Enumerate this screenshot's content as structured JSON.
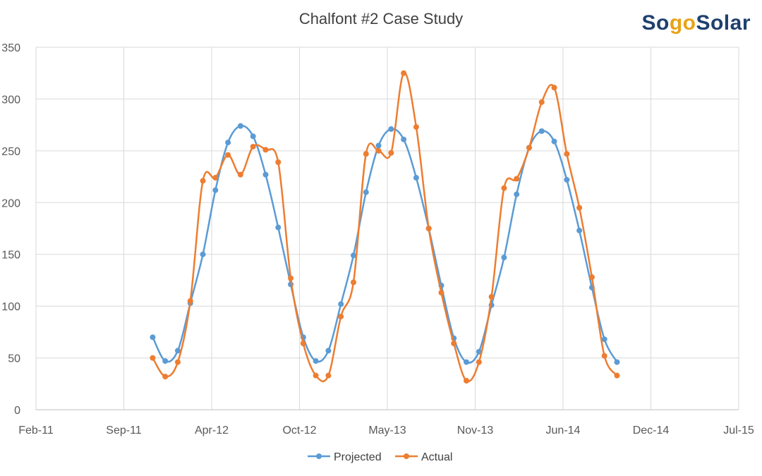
{
  "brand": {
    "logo_part1": "So",
    "logo_part2": "go",
    "logo_part3": "Solar",
    "primary_color": "#1f3f6e",
    "accent_color": "#e8a317"
  },
  "chart_data": {
    "type": "line",
    "title": "Chalfont #2 Case Study",
    "xlabel": "",
    "ylabel": "",
    "ylim": [
      0,
      350
    ],
    "yticks": [
      0,
      50,
      100,
      150,
      200,
      250,
      300,
      350
    ],
    "x_tick_labels": [
      "Feb-11",
      "Sep-11",
      "Apr-12",
      "Oct-12",
      "May-13",
      "Nov-13",
      "Jun-14",
      "Dec-14",
      "Jul-15"
    ],
    "grid": true,
    "legend_position": "bottom",
    "x": [
      "Nov-11",
      "Dec-11",
      "Jan-12",
      "Feb-12",
      "Mar-12",
      "Apr-12",
      "May-12",
      "Jun-12",
      "Jul-12",
      "Aug-12",
      "Sep-12",
      "Oct-12",
      "Nov-12",
      "Dec-12",
      "Jan-13",
      "Feb-13",
      "Mar-13",
      "Apr-13",
      "May-13",
      "Jun-13",
      "Jul-13",
      "Aug-13",
      "Sep-13",
      "Oct-13",
      "Nov-13",
      "Dec-13",
      "Jan-14",
      "Feb-14",
      "Mar-14",
      "Apr-14",
      "May-14",
      "Jun-14",
      "Jul-14",
      "Aug-14",
      "Sep-14",
      "Oct-14",
      "Nov-14",
      "Dec-14"
    ],
    "series": [
      {
        "name": "Projected",
        "color": "#5b9bd5",
        "values": [
          70,
          47,
          57,
          103,
          150,
          212,
          258,
          274,
          264,
          227,
          176,
          121,
          70,
          47,
          57,
          102,
          149,
          210,
          255,
          271,
          261,
          224,
          175,
          120,
          69,
          46,
          56,
          101,
          147,
          208,
          253,
          269,
          259,
          222,
          173,
          118,
          68,
          46
        ]
      },
      {
        "name": "Actual",
        "color": "#ed7d31",
        "values": [
          50,
          32,
          46,
          105,
          221,
          224,
          246,
          227,
          254,
          251,
          239,
          127,
          64,
          33,
          33,
          90,
          123,
          247,
          250,
          248,
          325,
          273,
          175,
          113,
          64,
          28,
          46,
          109,
          214,
          223,
          253,
          297,
          311,
          247,
          195,
          128,
          52,
          33
        ]
      }
    ]
  }
}
